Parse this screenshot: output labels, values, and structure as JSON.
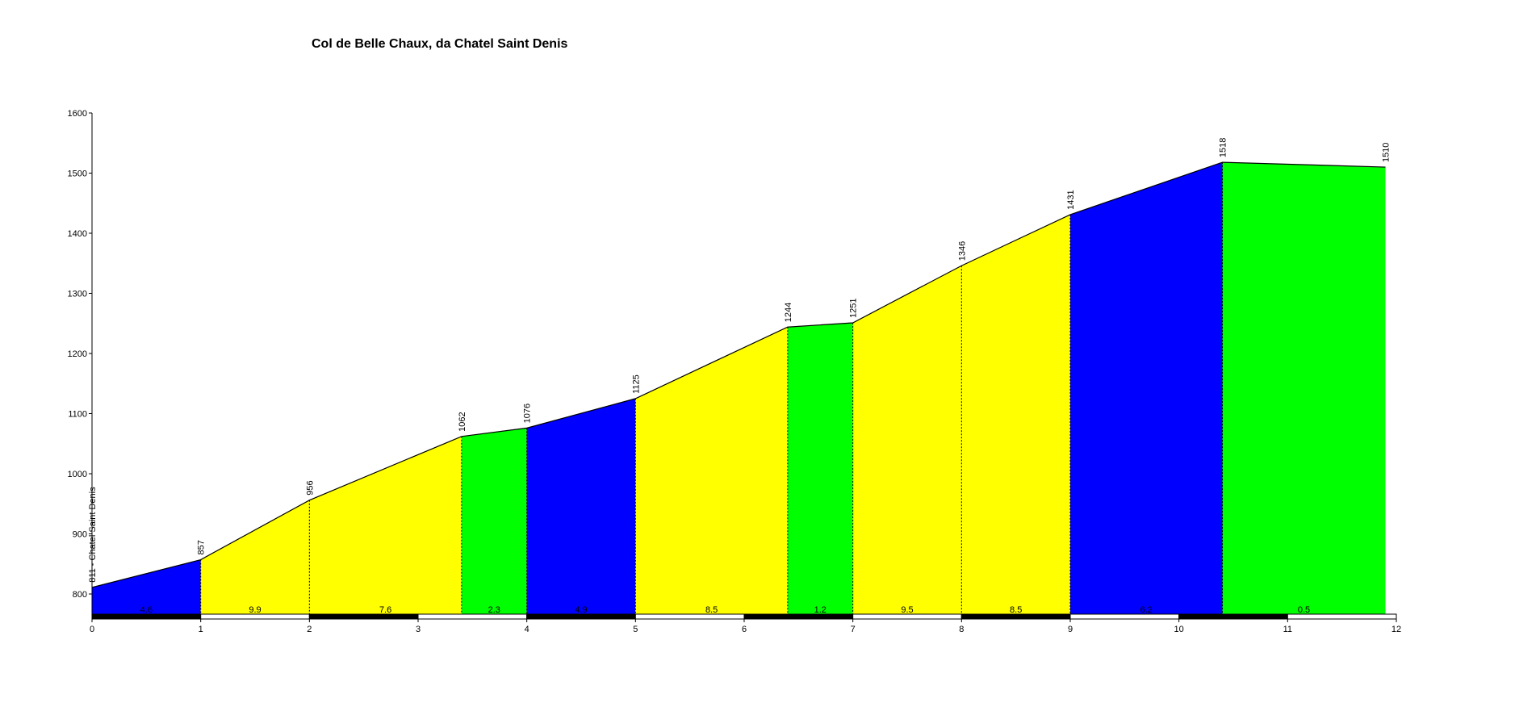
{
  "chart_data": {
    "type": "area",
    "title": "Col de Belle Chaux, da Chatel Saint Denis",
    "xlabel": "",
    "ylabel": "",
    "xlim": [
      0,
      12
    ],
    "ylim": [
      765,
      1600
    ],
    "x_ticks": [
      0,
      1,
      2,
      3,
      4,
      5,
      6,
      7,
      8,
      9,
      10,
      11,
      12
    ],
    "y_ticks": [
      800,
      900,
      1000,
      1100,
      1200,
      1300,
      1400,
      1500,
      1600
    ],
    "grid": false,
    "points": [
      {
        "x": 0,
        "y": 811,
        "label": "811 - Chatel Saint Denis"
      },
      {
        "x": 1,
        "y": 857,
        "label": "857"
      },
      {
        "x": 2,
        "y": 956,
        "label": "956"
      },
      {
        "x": 3.4,
        "y": 1062,
        "label": "1062"
      },
      {
        "x": 4,
        "y": 1076,
        "label": "1076"
      },
      {
        "x": 5,
        "y": 1125,
        "label": "1125"
      },
      {
        "x": 6.4,
        "y": 1244,
        "label": "1244"
      },
      {
        "x": 7,
        "y": 1251,
        "label": "1251"
      },
      {
        "x": 8,
        "y": 1346,
        "label": "1346"
      },
      {
        "x": 9,
        "y": 1431,
        "label": "1431"
      },
      {
        "x": 10.4,
        "y": 1518,
        "label": "1518"
      },
      {
        "x": 11.9,
        "y": 1510,
        "label": "1510"
      }
    ],
    "segments": [
      {
        "x0": 0,
        "x1": 1,
        "gradient": "4.6",
        "color": "#0000ff"
      },
      {
        "x0": 1,
        "x1": 2,
        "gradient": "9.9",
        "color": "#ffff00"
      },
      {
        "x0": 2,
        "x1": 3.4,
        "gradient": "7.6",
        "color": "#ffff00"
      },
      {
        "x0": 3.4,
        "x1": 4,
        "gradient": "2.3",
        "color": "#00ff00"
      },
      {
        "x0": 4,
        "x1": 5,
        "gradient": "4.9",
        "color": "#0000ff"
      },
      {
        "x0": 5,
        "x1": 6.4,
        "gradient": "8.5",
        "color": "#ffff00"
      },
      {
        "x0": 6.4,
        "x1": 7,
        "gradient": "1.2",
        "color": "#00ff00"
      },
      {
        "x0": 7,
        "x1": 8,
        "gradient": "9.5",
        "color": "#ffff00"
      },
      {
        "x0": 8,
        "x1": 9,
        "gradient": "8.5",
        "color": "#ffff00"
      },
      {
        "x0": 9,
        "x1": 10.4,
        "gradient": "6.2",
        "color": "#0000ff"
      },
      {
        "x0": 10.4,
        "x1": 11.9,
        "gradient": "0.5",
        "color": "#00ff00"
      }
    ]
  }
}
